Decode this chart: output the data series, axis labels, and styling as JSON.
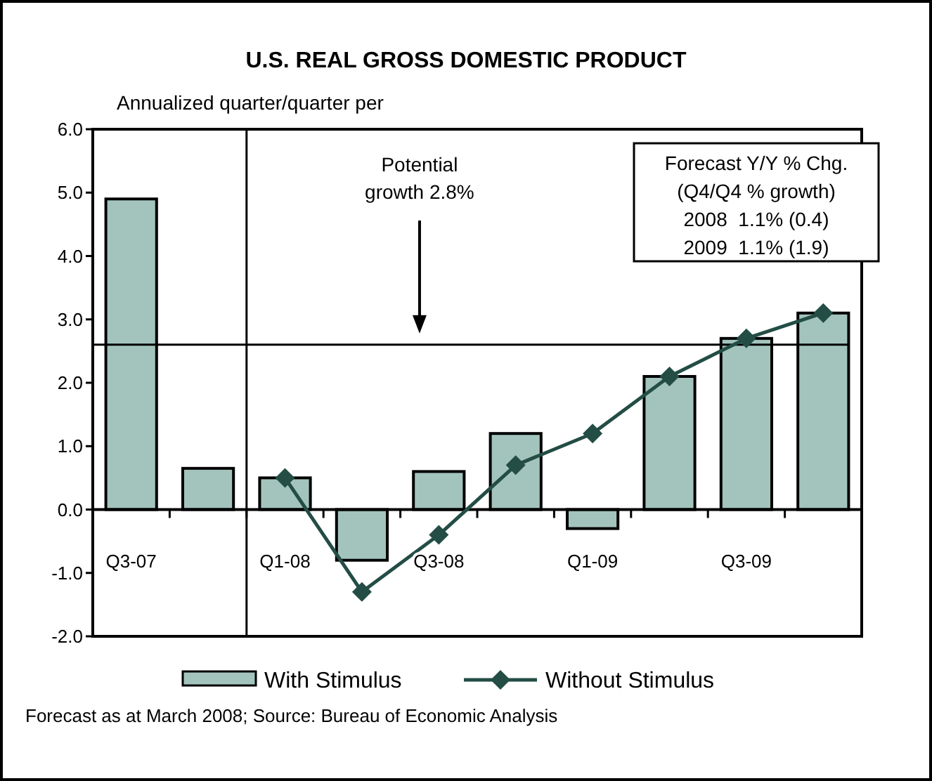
{
  "chart_data": {
    "type": "bar",
    "title": "U.S. REAL GROSS DOMESTIC PRODUCT",
    "ylabel": "Annualized quarter/quarter per",
    "categories": [
      "Q3-07",
      null,
      "Q1-08",
      null,
      "Q3-08",
      null,
      "Q1-09",
      null,
      "Q3-09",
      null
    ],
    "series": [
      {
        "name": "With Stimulus",
        "color": "#a3c4bc",
        "values": [
          4.9,
          0.65,
          0.5,
          -0.8,
          0.6,
          1.2,
          -0.3,
          2.1,
          2.7,
          3.1
        ]
      },
      {
        "name": "Without Stimulus",
        "type": "line",
        "color": "#234d45",
        "marker": "diamond",
        "values": [
          null,
          null,
          0.5,
          -1.3,
          -0.4,
          0.7,
          1.2,
          2.1,
          2.7,
          3.1
        ]
      }
    ],
    "ylim": [
      -2,
      6
    ],
    "yticks": [
      {
        "value": -2,
        "label": "-2.0"
      },
      {
        "value": -1,
        "label": "-1.0"
      },
      {
        "value": 0,
        "label": "0.0"
      },
      {
        "value": 1,
        "label": "1.0"
      },
      {
        "value": 2,
        "label": "2.0"
      },
      {
        "value": 3,
        "label": "3.0"
      },
      {
        "value": 4,
        "label": "4.0"
      },
      {
        "value": 5,
        "label": "5.0"
      },
      {
        "value": 6,
        "label": "6.0"
      }
    ],
    "ref_lines": [
      {
        "axis": "y",
        "value": 2.6,
        "color": "#000000"
      }
    ],
    "annotations": [
      "Potential growth 2.8%",
      "Forecast Y/Y % Chg.\n(Q4/Q4 % growth)\n2008  1.1% (0.4)\n2009  1.1% (1.9)",
      "Forecast as at March 2008; Source: Bureau of Economic Analysis"
    ],
    "grid": false,
    "legend": "bottom"
  }
}
